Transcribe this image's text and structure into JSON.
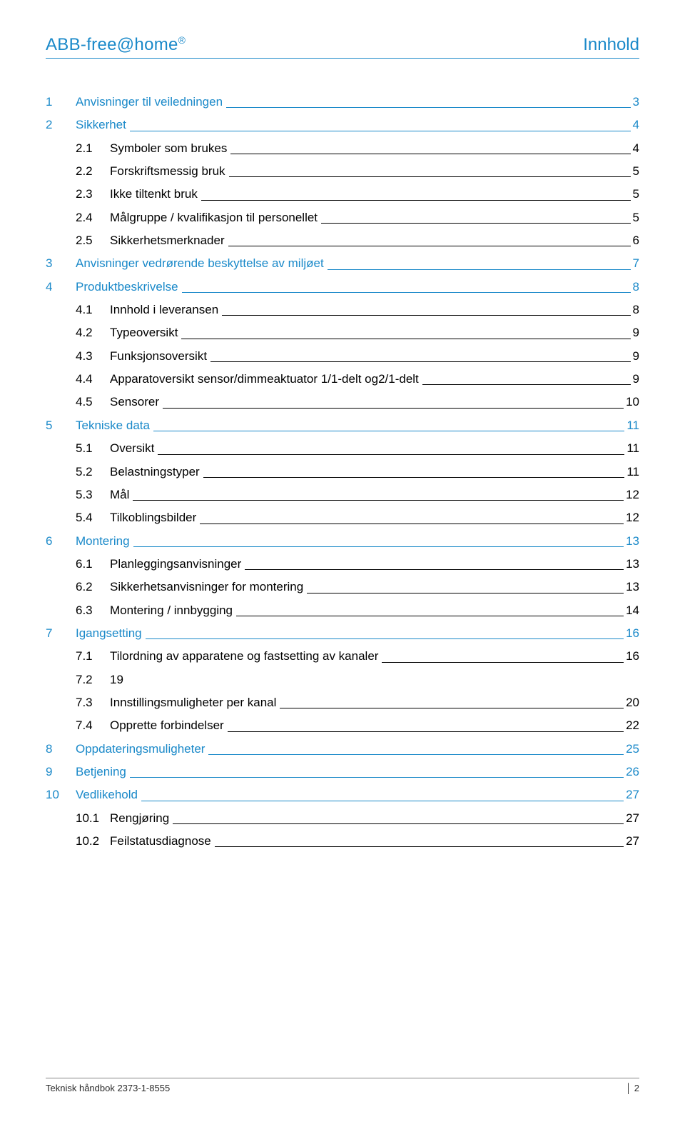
{
  "colors": {
    "accent": "#1a89c9",
    "text": "#000000",
    "footer_rule": "#888888",
    "bg": "#ffffff"
  },
  "typography": {
    "body_fontsize_pt": 13,
    "header_fontsize_pt": 18,
    "footer_fontsize_pt": 10
  },
  "header": {
    "brand_prefix": "ABB-free@home",
    "brand_suffix": "®",
    "right": "Innhold"
  },
  "toc": [
    {
      "level": 1,
      "num": "1",
      "title": "Anvisninger til veiledningen",
      "page": "3"
    },
    {
      "level": 1,
      "num": "2",
      "title": "Sikkerhet",
      "page": "4"
    },
    {
      "level": 2,
      "num": "2.1",
      "title": "Symboler som brukes",
      "page": "4"
    },
    {
      "level": 2,
      "num": "2.2",
      "title": "Forskriftsmessig bruk",
      "page": "5"
    },
    {
      "level": 2,
      "num": "2.3",
      "title": "Ikke tiltenkt bruk",
      "page": "5"
    },
    {
      "level": 2,
      "num": "2.4",
      "title": "Målgruppe / kvalifikasjon til personellet",
      "page": "5"
    },
    {
      "level": 2,
      "num": "2.5",
      "title": "Sikkerhetsmerknader",
      "page": "6"
    },
    {
      "level": 1,
      "num": "3",
      "title": "Anvisninger vedrørende beskyttelse av miljøet",
      "page": "7"
    },
    {
      "level": 1,
      "num": "4",
      "title": "Produktbeskrivelse",
      "page": "8"
    },
    {
      "level": 2,
      "num": "4.1",
      "title": "Innhold i leveransen",
      "page": "8"
    },
    {
      "level": 2,
      "num": "4.2",
      "title": "Typeoversikt",
      "page": "9"
    },
    {
      "level": 2,
      "num": "4.3",
      "title": "Funksjonsoversikt",
      "page": "9"
    },
    {
      "level": 2,
      "num": "4.4",
      "title": "Apparatoversikt sensor/dimmeaktuator 1/1-delt og2/1-delt",
      "page": "9"
    },
    {
      "level": 2,
      "num": "4.5",
      "title": "Sensorer",
      "page": "10"
    },
    {
      "level": 1,
      "num": "5",
      "title": "Tekniske data",
      "page": "11"
    },
    {
      "level": 2,
      "num": "5.1",
      "title": "Oversikt",
      "page": "11"
    },
    {
      "level": 2,
      "num": "5.2",
      "title": "Belastningstyper",
      "page": "11"
    },
    {
      "level": 2,
      "num": "5.3",
      "title": "Mål",
      "page": "12"
    },
    {
      "level": 2,
      "num": "5.4",
      "title": "Tilkoblingsbilder",
      "page": "12"
    },
    {
      "level": 1,
      "num": "6",
      "title": "Montering",
      "page": "13"
    },
    {
      "level": 2,
      "num": "6.1",
      "title": "Planleggingsanvisninger",
      "page": "13"
    },
    {
      "level": 2,
      "num": "6.2",
      "title": "Sikkerhetsanvisninger for montering",
      "page": "13"
    },
    {
      "level": 2,
      "num": "6.3",
      "title": "Montering / innbygging",
      "page": "14"
    },
    {
      "level": 1,
      "num": "7",
      "title": "Igangsetting",
      "page": "16"
    },
    {
      "level": 2,
      "num": "7.1",
      "title": "Tilordning av apparatene og fastsetting av kanaler",
      "page": "16"
    },
    {
      "level": 2,
      "num": "7.2",
      "title": "19",
      "page": "",
      "no_leader": true
    },
    {
      "level": 2,
      "num": "7.3",
      "title": "Innstillingsmuligheter per kanal",
      "page": "20"
    },
    {
      "level": 2,
      "num": "7.4",
      "title": "Opprette forbindelser",
      "page": "22"
    },
    {
      "level": 1,
      "num": "8",
      "title": "Oppdateringsmuligheter",
      "page": "25"
    },
    {
      "level": 1,
      "num": "9",
      "title": "Betjening",
      "page": "26"
    },
    {
      "level": 1,
      "num": "10",
      "title": "Vedlikehold",
      "page": "27"
    },
    {
      "level": 2,
      "num": "10.1",
      "title": "Rengjøring",
      "page": "27"
    },
    {
      "level": 2,
      "num": "10.2",
      "title": "Feilstatusdiagnose",
      "page": "27"
    }
  ],
  "footer": {
    "left": "Teknisk håndbok 2373-1-8555",
    "right_label": "│",
    "right_page": "2"
  }
}
